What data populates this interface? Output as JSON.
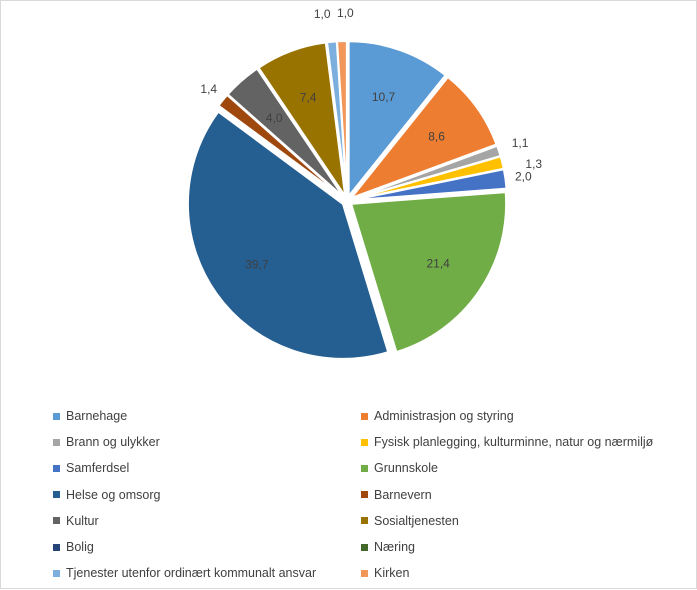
{
  "chart_data": {
    "type": "pie",
    "title": "",
    "legend_position": "bottom",
    "categories": [
      "Barnehage",
      "Administrasjon og styring",
      "Brann og ulykker",
      "Fysisk planlegging, kulturminne, natur og nærmiljø",
      "Samferdsel",
      "Grunnskole",
      "Helse og omsorg",
      "Barnevern",
      "Kultur",
      "Sosialtjenesten",
      "Bolig",
      "Næring",
      "Tjenester utenfor ordinært kommunalt ansvar",
      "Kirken"
    ],
    "values": [
      10.7,
      8.6,
      1.1,
      1.3,
      2.0,
      21.4,
      39.7,
      1.4,
      4.0,
      7.4,
      0.0,
      0.0,
      1.0,
      1.0
    ],
    "data_labels": [
      "10,7",
      "8,6",
      "1,1",
      "1,3",
      "2,0",
      "21,4",
      "39,7",
      "1,4",
      "4,0",
      "7,4",
      "",
      "",
      "1,0",
      "1,0"
    ],
    "colors": [
      "#5b9bd5",
      "#ed7d31",
      "#a5a5a5",
      "#ffc000",
      "#4472c4",
      "#70ad47",
      "#255e91",
      "#9e480e",
      "#636363",
      "#997300",
      "#264478",
      "#43682b",
      "#7cafdd",
      "#f1975a"
    ]
  }
}
